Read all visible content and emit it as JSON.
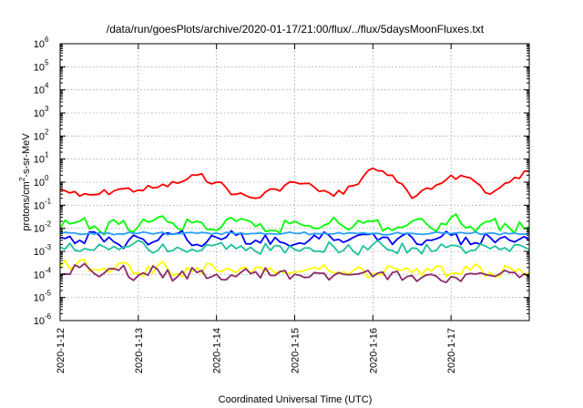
{
  "chart_data": {
    "type": "line",
    "title": "/data/run/goesPlots/archive/2020-01-17/21:00/flux/../flux/5daysMoonFluxes.txt",
    "xlabel": "Coordinated Universal Time (UTC)",
    "ylabel": {
      "base": "protons/cm",
      "sup": "2",
      "rest": "-s-sr-MeV"
    },
    "scale": "log",
    "grid": true,
    "legend": "none",
    "xlim": [
      "2020-01-12",
      "2020-01-18"
    ],
    "ylim": [
      1e-06,
      1000000.0
    ],
    "x_ticks": [
      "2020-1-12",
      "2020-1-13",
      "2020-1-14",
      "2020-1-15",
      "2020-1-16",
      "2020-1-17"
    ],
    "y_ticks": [
      {
        "base": "10",
        "exp": "-6"
      },
      {
        "base": "10",
        "exp": "-5"
      },
      {
        "base": "10",
        "exp": "-4"
      },
      {
        "base": "10",
        "exp": "-3"
      },
      {
        "base": "10",
        "exp": "-2"
      },
      {
        "base": "10",
        "exp": "-1"
      },
      {
        "base": "10",
        "exp": "0"
      },
      {
        "base": "10",
        "exp": "1"
      },
      {
        "base": "10",
        "exp": "2"
      },
      {
        "base": "10",
        "exp": "3"
      },
      {
        "base": "10",
        "exp": "4"
      },
      {
        "base": "10",
        "exp": "5"
      },
      {
        "base": "10",
        "exp": "6"
      }
    ],
    "x": [
      "2020-01-12",
      "2020-01-12 06:00",
      "2020-01-12 12:00",
      "2020-01-12 18:00",
      "2020-01-13",
      "2020-01-13 06:00",
      "2020-01-13 12:00",
      "2020-01-13 18:00",
      "2020-01-14",
      "2020-01-14 06:00",
      "2020-01-14 12:00",
      "2020-01-14 18:00",
      "2020-01-15",
      "2020-01-15 06:00",
      "2020-01-15 12:00",
      "2020-01-15 18:00",
      "2020-01-16",
      "2020-01-16 06:00",
      "2020-01-16 12:00",
      "2020-01-16 18:00",
      "2020-01-17",
      "2020-01-17 06:00",
      "2020-01-17 12:00",
      "2020-01-17 18:00",
      "2020-01-18"
    ],
    "series": [
      {
        "color": "#ff0000",
        "values": [
          0.5,
          0.25,
          0.3,
          0.5,
          0.45,
          0.6,
          0.9,
          2.0,
          1.0,
          0.3,
          0.2,
          0.5,
          1.0,
          0.6,
          0.25,
          0.7,
          4.0,
          2.0,
          0.2,
          0.5,
          2.0,
          1.5,
          0.3,
          1.0,
          3.0
        ]
      },
      {
        "color": "#00ff00",
        "values": [
          0.01,
          0.02,
          0.008,
          0.015,
          0.012,
          0.03,
          0.01,
          0.02,
          0.008,
          0.02,
          0.012,
          0.008,
          0.02,
          0.01,
          0.03,
          0.012,
          0.02,
          0.008,
          0.02,
          0.01,
          0.03,
          0.012,
          0.02,
          0.01,
          0.012
        ]
      },
      {
        "color": "#0000ff",
        "values": [
          0.004,
          0.003,
          0.005,
          0.002,
          0.004,
          0.003,
          0.006,
          0.002,
          0.004,
          0.005,
          0.003,
          0.004,
          0.002,
          0.005,
          0.003,
          0.004,
          0.006,
          0.002,
          0.004,
          0.003,
          0.005,
          0.002,
          0.004,
          0.003,
          0.003
        ]
      },
      {
        "color": "#2aa0ff",
        "values": [
          0.006,
          0.0055,
          0.0065,
          0.0058,
          0.006,
          0.0062,
          0.0057,
          0.006,
          0.0063,
          0.0058,
          0.006,
          0.0056,
          0.0061,
          0.006,
          0.0058,
          0.0062,
          0.006,
          0.0057,
          0.006,
          0.0061,
          0.0059,
          0.006,
          0.0062,
          0.0058,
          0.006
        ]
      },
      {
        "color": "#20c0a0",
        "values": [
          0.0015,
          0.001,
          0.002,
          0.0012,
          0.003,
          0.0011,
          0.0015,
          0.001,
          0.002,
          0.0013,
          0.001,
          0.0018,
          0.0012,
          0.001,
          0.0016,
          0.001,
          0.002,
          0.0011,
          0.0014,
          0.001,
          0.0018,
          0.0011,
          0.0013,
          0.001,
          0.0012
        ]
      },
      {
        "color": "#ffff00",
        "values": [
          0.0002,
          0.0004,
          0.00015,
          0.0003,
          0.00012,
          0.00025,
          0.00011,
          0.0002,
          0.00015,
          0.00012,
          0.0002,
          0.00011,
          0.00013,
          0.0002,
          0.00012,
          0.00015,
          0.00011,
          0.0002,
          0.00012,
          0.00014,
          0.00011,
          0.00016,
          0.00012,
          0.0002,
          0.00012
        ]
      },
      {
        "color": "#8b2a6b",
        "values": [
          0.0001,
          0.0002,
          8e-05,
          0.00015,
          9e-05,
          0.00016,
          8e-05,
          0.00012,
          0.0001,
          8e-05,
          0.00013,
          9e-05,
          0.0001,
          0.00012,
          9e-05,
          0.0001,
          8e-05,
          0.00012,
          9e-05,
          0.0001,
          8e-05,
          0.00011,
          9e-05,
          0.00012,
          8e-05
        ]
      }
    ]
  }
}
